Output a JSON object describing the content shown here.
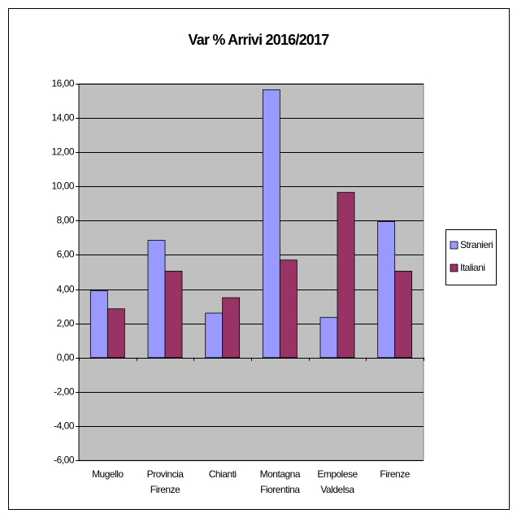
{
  "chart_data": {
    "type": "bar",
    "title": "Var % Arrivi 2016/2017",
    "categories": [
      "Mugello",
      "Provincia Firenze",
      "Chianti",
      "Montagna Fiorentina",
      "Empolese Valdelsa",
      "Firenze"
    ],
    "series": [
      {
        "name": "Stranieri",
        "color": "#9999ff",
        "values": [
          3.9,
          6.85,
          2.6,
          15.65,
          2.35,
          7.95
        ]
      },
      {
        "name": "Italiani",
        "color": "#993366",
        "values": [
          2.85,
          5.05,
          3.5,
          5.7,
          9.65,
          5.05
        ]
      }
    ],
    "ylim": [
      -6,
      16
    ],
    "yticks": [
      {
        "value": -6,
        "label": "-6,00"
      },
      {
        "value": -4,
        "label": "-4,00"
      },
      {
        "value": -2,
        "label": "-2,00"
      },
      {
        "value": 0,
        "label": "0,00"
      },
      {
        "value": 2,
        "label": "2,00"
      },
      {
        "value": 4,
        "label": "4,00"
      },
      {
        "value": 6,
        "label": "6,00"
      },
      {
        "value": 8,
        "label": "8,00"
      },
      {
        "value": 10,
        "label": "10,00"
      },
      {
        "value": 12,
        "label": "12,00"
      },
      {
        "value": 14,
        "label": "14,00"
      },
      {
        "value": 16,
        "label": "16,00"
      }
    ],
    "grid": true,
    "legend": "right",
    "plot_background": "#c0c0c0"
  }
}
